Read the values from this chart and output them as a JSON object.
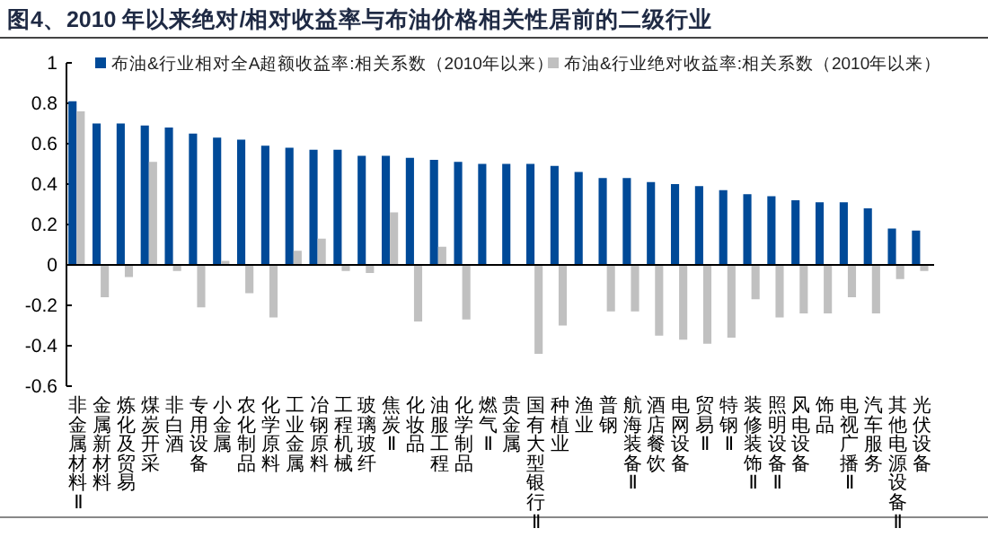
{
  "chart_data": {
    "type": "bar",
    "title": "图4、2010 年以来绝对/相对收益率与布油价格相关性居前的二级行业",
    "categories": [
      "非金属材料Ⅱ",
      "金属新材料",
      "炼化及贸易",
      "煤炭开采",
      "非白酒",
      "专用设备",
      "小金属",
      "农化制品",
      "化学原料",
      "工业金属",
      "冶钢原料",
      "工程机械",
      "玻璃玻纤",
      "焦炭Ⅱ",
      "化妆品",
      "油服工程",
      "化学制品",
      "燃气Ⅱ",
      "贵金属",
      "国有大型银行Ⅱ",
      "种植业",
      "渔业",
      "普钢",
      "航海装备Ⅱ",
      "酒店餐饮",
      "电网设备",
      "贸易Ⅱ",
      "特钢Ⅱ",
      "装修装饰Ⅱ",
      "照明设备Ⅱ",
      "风电设备",
      "饰品",
      "电视广播Ⅱ",
      "汽车服务",
      "其他电源设备Ⅱ",
      "光伏设备"
    ],
    "series": [
      {
        "name": "布油&行业相对全A超额收益率:相关系数（2010年以来）",
        "color": "#004a98",
        "values": [
          0.81,
          0.7,
          0.7,
          0.69,
          0.68,
          0.65,
          0.63,
          0.62,
          0.59,
          0.58,
          0.57,
          0.57,
          0.54,
          0.54,
          0.53,
          0.52,
          0.51,
          0.5,
          0.5,
          0.5,
          0.49,
          0.46,
          0.43,
          0.43,
          0.41,
          0.4,
          0.39,
          0.37,
          0.35,
          0.34,
          0.32,
          0.31,
          0.31,
          0.28,
          0.18,
          0.17
        ]
      },
      {
        "name": "布油&行业绝对收益率:相关系数（2010年以来）",
        "color": "#c0c0c0",
        "values": [
          0.76,
          -0.16,
          -0.06,
          0.51,
          -0.03,
          -0.21,
          0.02,
          -0.14,
          -0.26,
          0.07,
          0.13,
          -0.03,
          -0.04,
          0.26,
          -0.28,
          0.09,
          -0.27,
          null,
          null,
          -0.44,
          -0.3,
          null,
          -0.23,
          -0.23,
          -0.35,
          -0.37,
          -0.39,
          -0.36,
          -0.17,
          -0.26,
          -0.24,
          -0.24,
          -0.16,
          -0.24,
          -0.07,
          -0.03
        ]
      }
    ],
    "ylim": [
      -0.6,
      1
    ],
    "yticks": [
      -0.6,
      -0.4,
      -0.2,
      0,
      0.2,
      0.4,
      0.6,
      0.8,
      1
    ],
    "legend": "top"
  }
}
